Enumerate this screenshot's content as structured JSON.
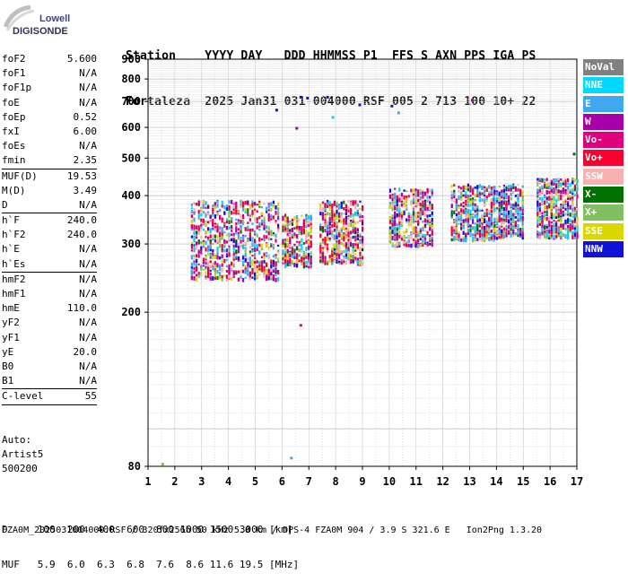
{
  "logo": {
    "line1": "Lowell",
    "line2": "DIGISONDE"
  },
  "header": {
    "labels": "Station    YYYY DAY   DDD HHMMSS P1  FFS S AXN PPS IGA PS",
    "values": "Fortaleza  2025 Jan31 031 004000 RSF 005 2 713 100 10+ 22"
  },
  "params": [
    {
      "group": [
        {
          "name": "foF2",
          "value": "5.600"
        },
        {
          "name": "foF1",
          "value": "N/A"
        },
        {
          "name": "foF1p",
          "value": "N/A"
        },
        {
          "name": "foE",
          "value": "N/A"
        },
        {
          "name": "foEp",
          "value": "0.52"
        },
        {
          "name": "fxI",
          "value": "6.00"
        },
        {
          "name": "foEs",
          "value": "N/A"
        },
        {
          "name": "fmin",
          "value": "2.35"
        }
      ]
    },
    {
      "group": [
        {
          "name": "MUF(D)",
          "value": "19.53"
        },
        {
          "name": "M(D)",
          "value": "3.49"
        },
        {
          "name": "D",
          "value": "N/A"
        }
      ]
    },
    {
      "group": [
        {
          "name": "h`F",
          "value": "240.0"
        },
        {
          "name": "h`F2",
          "value": "240.0"
        },
        {
          "name": "h`E",
          "value": "N/A"
        },
        {
          "name": "h`Es",
          "value": "N/A"
        }
      ]
    },
    {
      "group": [
        {
          "name": "hmF2",
          "value": "N/A"
        },
        {
          "name": "hmF1",
          "value": "N/A"
        },
        {
          "name": "hmE",
          "value": "110.0"
        },
        {
          "name": "yF2",
          "value": "N/A"
        },
        {
          "name": "yF1",
          "value": "N/A"
        },
        {
          "name": "yE",
          "value": "20.0"
        },
        {
          "name": "B0",
          "value": "N/A"
        },
        {
          "name": "B1",
          "value": "N/A"
        }
      ]
    },
    {
      "group": [
        {
          "name": "C-level",
          "value": "55"
        }
      ]
    }
  ],
  "auto": {
    "line1": "Auto:",
    "line2": "Artist5",
    "line3": "500200"
  },
  "legend": [
    {
      "label": "NoVal",
      "color": "#808080"
    },
    {
      "label": "NNE",
      "color": "#00d8ff"
    },
    {
      "label": "E",
      "color": "#40a8f0"
    },
    {
      "label": "W",
      "color": "#a800a8"
    },
    {
      "label": "Vo-",
      "color": "#e0007c"
    },
    {
      "label": "Vo+",
      "color": "#f80030"
    },
    {
      "label": "SSW",
      "color": "#f8b0b0"
    },
    {
      "label": "X-",
      "color": "#007000"
    },
    {
      "label": "X+",
      "color": "#80c060"
    },
    {
      "label": "SSE",
      "color": "#d8d800"
    },
    {
      "label": "NNW",
      "color": "#1010d8"
    }
  ],
  "chart_data": {
    "type": "scatter",
    "xlabel": "",
    "ylabel": "",
    "xlim": [
      1,
      17
    ],
    "ylim": [
      80,
      900
    ],
    "y_scale": "log",
    "xticks": [
      "1",
      "2",
      "3",
      "4",
      "5",
      "6",
      "7",
      "8",
      "9",
      "10",
      "11",
      "12",
      "13",
      "14",
      "15",
      "16",
      "17"
    ],
    "yticks": [
      "80",
      "200",
      "300",
      "400",
      "500",
      "600",
      "700",
      "800",
      "900"
    ],
    "grid": true,
    "legend_position": "right",
    "clusters": [
      {
        "f": [
          2.6,
          5.9
        ],
        "h": [
          245,
          390
        ],
        "color_weights": [
          0,
          2,
          5,
          2,
          4,
          5,
          2,
          1,
          2,
          3,
          2
        ]
      },
      {
        "f": [
          6.0,
          7.1
        ],
        "h": [
          265,
          360
        ],
        "color_weights": [
          0,
          1,
          2,
          1,
          3,
          3,
          2,
          1,
          2,
          3,
          1
        ]
      },
      {
        "f": [
          7.4,
          9.0
        ],
        "h": [
          270,
          390
        ],
        "color_weights": [
          0,
          1,
          2,
          2,
          4,
          4,
          3,
          1,
          2,
          3,
          2
        ]
      },
      {
        "f": [
          10.0,
          11.6
        ],
        "h": [
          300,
          420
        ],
        "color_weights": [
          0,
          2,
          3,
          2,
          3,
          3,
          4,
          1,
          2,
          2,
          2
        ]
      },
      {
        "f": [
          12.3,
          13.9
        ],
        "h": [
          310,
          430
        ],
        "color_weights": [
          0,
          3,
          4,
          2,
          3,
          3,
          2,
          1,
          2,
          2,
          2
        ]
      },
      {
        "f": [
          13.9,
          15.0
        ],
        "h": [
          315,
          430
        ],
        "color_weights": [
          0,
          3,
          4,
          3,
          3,
          2,
          2,
          1,
          2,
          2,
          3
        ]
      },
      {
        "f": [
          15.5,
          17.0
        ],
        "h": [
          315,
          445
        ],
        "color_weights": [
          0,
          3,
          3,
          3,
          3,
          2,
          2,
          1,
          2,
          2,
          2
        ]
      }
    ],
    "isolated_points": [
      {
        "f": 6.7,
        "h": 718,
        "color": "#1010d8"
      },
      {
        "f": 6.95,
        "h": 714,
        "color": "#1010d8"
      },
      {
        "f": 7.7,
        "h": 718,
        "color": "#1010d8"
      },
      {
        "f": 8.9,
        "h": 686,
        "color": "#1010d8"
      },
      {
        "f": 10.1,
        "h": 681,
        "color": "#1010d8"
      },
      {
        "f": 13.1,
        "h": 705,
        "color": "#a800a8"
      },
      {
        "f": 5.8,
        "h": 665,
        "color": "#1010d8"
      },
      {
        "f": 6.55,
        "h": 597,
        "color": "#a800a8"
      },
      {
        "f": 7.9,
        "h": 637,
        "color": "#00d8ff"
      },
      {
        "f": 10.35,
        "h": 654,
        "color": "#40a8f0"
      },
      {
        "f": 6.7,
        "h": 185,
        "color": "#e0007c"
      },
      {
        "f": 6.35,
        "h": 84,
        "color": "#40a8f0"
      },
      {
        "f": 1.55,
        "h": 81,
        "color": "#80c060"
      },
      {
        "f": 16.9,
        "h": 512,
        "color": "#007000"
      }
    ]
  },
  "footer": {
    "line1": "D     100  200  400  600  800 1000 1500 3000 [km]",
    "line2": "MUF   5.9  6.0  6.3  6.8  7.6  8.6 11.6 19.5 [MHz]",
    "line3": "FZA0M_2025031004000.RSF / 320fx256h 50 kHz 5.0 km / DPS-4 FZA0M 904 / 3.9 S 321.6 E   Ion2Png 1.3.20"
  }
}
